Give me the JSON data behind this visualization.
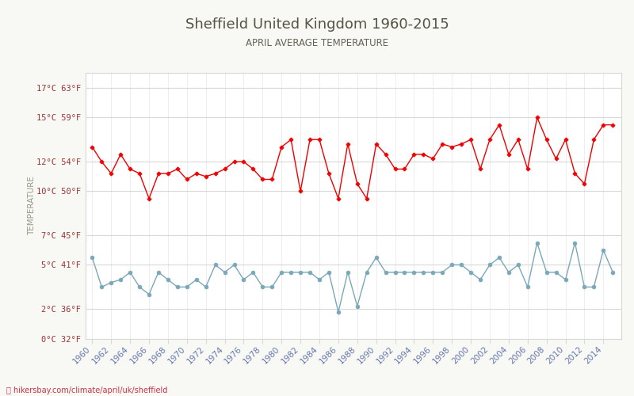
{
  "title": "Sheffield United Kingdom 1960-2015",
  "subtitle": "APRIL AVERAGE TEMPERATURE",
  "ylabel": "TEMPERATURE",
  "watermark": "hikersbay.com/climate/april/uk/sheffield",
  "bg_color": "#f8f8f5",
  "plot_bg_color": "#ffffff",
  "years": [
    1960,
    1961,
    1962,
    1963,
    1964,
    1965,
    1966,
    1967,
    1968,
    1969,
    1970,
    1971,
    1972,
    1973,
    1974,
    1975,
    1976,
    1977,
    1978,
    1979,
    1980,
    1981,
    1982,
    1983,
    1984,
    1985,
    1986,
    1987,
    1988,
    1989,
    1990,
    1991,
    1992,
    1993,
    1994,
    1995,
    1996,
    1997,
    1998,
    1999,
    2000,
    2001,
    2002,
    2003,
    2004,
    2005,
    2006,
    2007,
    2008,
    2009,
    2010,
    2011,
    2012,
    2013,
    2014,
    2015
  ],
  "day_temps": [
    13.0,
    12.0,
    11.2,
    12.5,
    11.5,
    11.2,
    9.5,
    11.2,
    11.2,
    11.5,
    10.8,
    11.2,
    11.0,
    11.2,
    11.5,
    12.0,
    12.0,
    11.5,
    10.8,
    10.8,
    13.0,
    13.5,
    10.0,
    13.5,
    13.5,
    11.2,
    9.5,
    13.2,
    10.5,
    9.5,
    13.2,
    12.5,
    11.5,
    11.5,
    12.5,
    12.5,
    12.2,
    13.2,
    13.0,
    13.2,
    13.5,
    11.5,
    13.5,
    14.5,
    12.5,
    13.5,
    11.5,
    15.0,
    13.5,
    12.2,
    13.5,
    11.2,
    10.5,
    13.5,
    14.5,
    14.5
  ],
  "night_temps": [
    5.5,
    3.5,
    3.8,
    4.0,
    4.5,
    3.5,
    3.0,
    4.5,
    4.0,
    3.5,
    3.5,
    4.0,
    3.5,
    5.0,
    4.5,
    5.0,
    4.0,
    4.5,
    3.5,
    3.5,
    4.5,
    4.5,
    4.5,
    4.5,
    4.0,
    4.5,
    1.8,
    4.5,
    2.2,
    4.5,
    5.5,
    4.5,
    4.5,
    4.5,
    4.5,
    4.5,
    4.5,
    4.5,
    5.0,
    5.0,
    4.5,
    4.0,
    5.0,
    5.5,
    4.5,
    5.0,
    3.5,
    6.5,
    4.5,
    4.5,
    4.0,
    6.5,
    3.5,
    3.5,
    6.0,
    4.5
  ],
  "day_color": "#ee0000",
  "night_color": "#7aa8b8",
  "grid_color": "#d8d8d8",
  "title_color": "#555544",
  "label_color": "#993333",
  "ylabel_color": "#999988",
  "yticks_celsius": [
    0,
    2,
    5,
    7,
    10,
    12,
    15,
    17
  ],
  "yticks_fahrenheit": [
    32,
    36,
    41,
    45,
    50,
    54,
    59,
    63
  ],
  "ylim": [
    0,
    18
  ],
  "xlim": [
    1959.3,
    2015.9
  ]
}
